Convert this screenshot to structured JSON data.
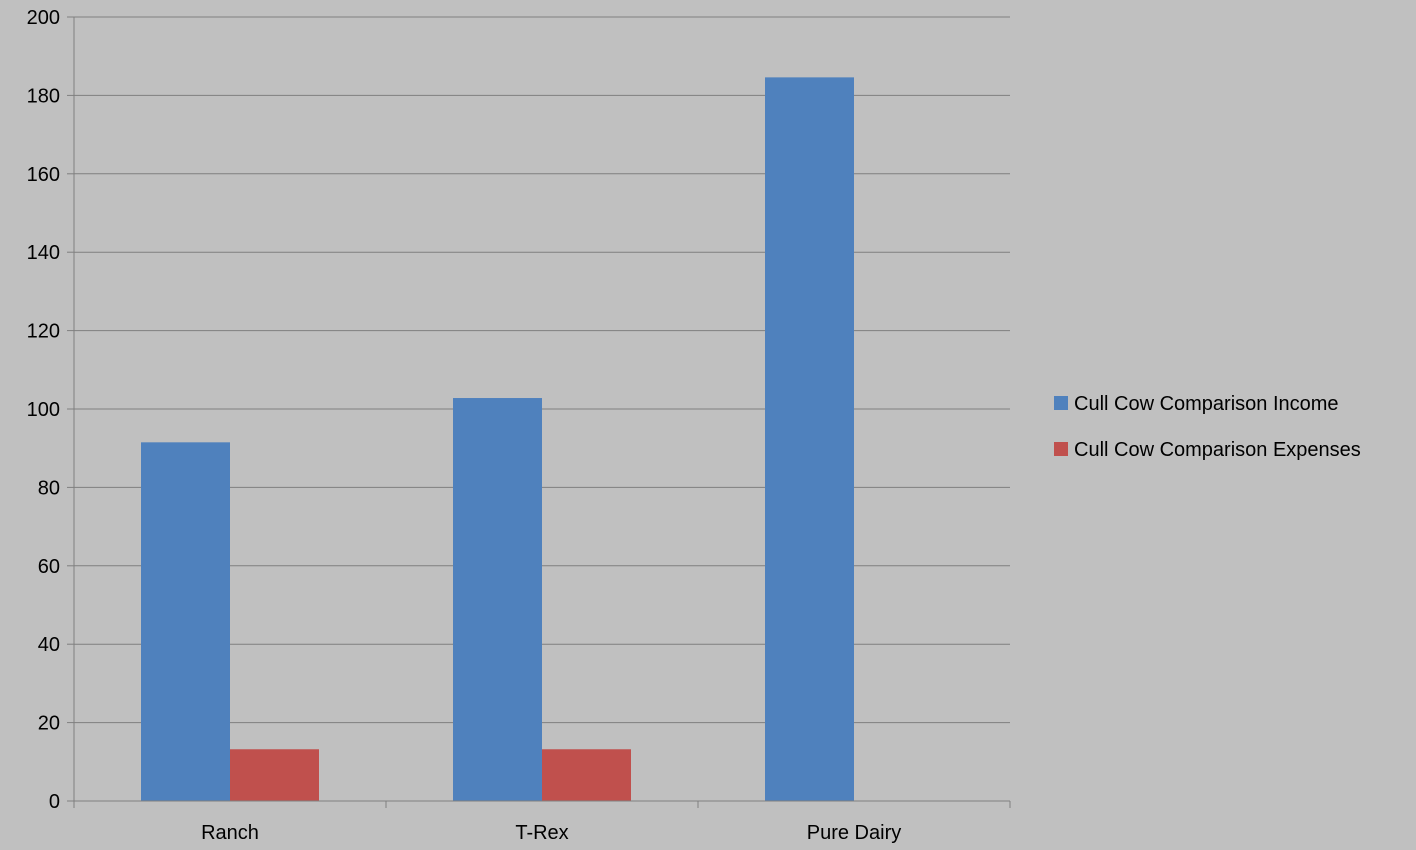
{
  "chart_data": {
    "type": "bar",
    "categories": [
      "Ranch",
      "T-Rex",
      "Pure Dairy"
    ],
    "series": [
      {
        "name": "Cull Cow Comparison Income",
        "values": [
          91.5,
          102.8,
          184.6
        ],
        "color": "#4f81bd"
      },
      {
        "name": "Cull Cow Comparison Expenses",
        "values": [
          13.2,
          13.2,
          0
        ],
        "color": "#c0504d"
      }
    ],
    "title": "",
    "xlabel": "",
    "ylabel": "",
    "ylim": [
      0,
      200
    ],
    "yticks": [
      0,
      20,
      40,
      60,
      80,
      100,
      120,
      140,
      160,
      180,
      200
    ],
    "grid": true,
    "legend": "right",
    "background": "#c0c0c0",
    "gridline_color": "#7f7f7f"
  }
}
